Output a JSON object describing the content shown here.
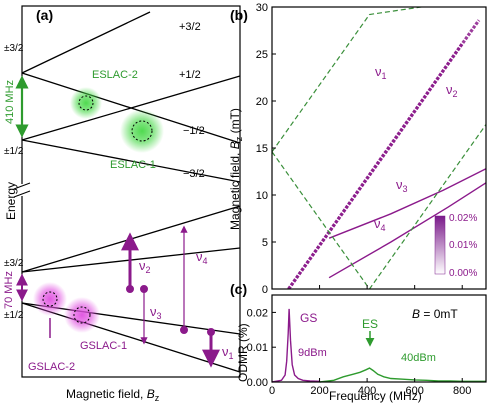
{
  "colors": {
    "green": "#2e9b2e",
    "green_glow": "#46d846",
    "purple": "#8b1a8b",
    "purple_glow": "#e050e0",
    "dashed_green": "#3a8f3a",
    "black": "#000000"
  },
  "panel_a": {
    "label": "(a)",
    "y_label": "Energy",
    "x_label_prefix": "Magnetic field, ",
    "x_label_var": "B",
    "x_label_sub": "z",
    "es_left_top": "±3/2",
    "es_left_bottom": "±1/2",
    "es_right": [
      "+3/2",
      "+1/2",
      "−1/2",
      "−3/2"
    ],
    "es_splitting": "410 MHz",
    "eslac2": "ESLAC-2",
    "eslac1": "ESLAC-1",
    "gs_left_top": "±3/2",
    "gs_left_bottom": "±1/2",
    "gs_splitting": "70 MHz",
    "gslac1": "GSLAC-1",
    "gslac2": "GSLAC-2",
    "transitions": [
      "ν",
      "ν",
      "ν",
      "ν"
    ],
    "transition_subs": [
      "1",
      "2",
      "3",
      "4"
    ]
  },
  "panel_b": {
    "label": "(b)",
    "y_label_prefix": "Magnetic field, ",
    "y_label_var": "B",
    "y_label_sub": "z",
    "y_label_unit": " (mT)",
    "colorbar_ticks": [
      "0.02%",
      "0.01%",
      "0.00%"
    ],
    "line_labels": [
      "ν",
      "ν",
      "ν",
      "ν"
    ],
    "line_subs": [
      "1",
      "2",
      "3",
      "4"
    ]
  },
  "panel_c": {
    "label": "(c)",
    "y_label": "ODMR (%)",
    "x_label": "Frequency (MHz)",
    "condition_var": "B",
    "condition_val": " = 0mT",
    "gs": "GS",
    "gs_power": "9dBm",
    "es": "ES",
    "es_power": "40dBm"
  },
  "chart_data": [
    {
      "type": "diagram",
      "panel": "a",
      "title": "",
      "xlabel": "Magnetic field, Bz",
      "ylabel": "Energy",
      "excited_state_levels": [
        "+3/2",
        "+1/2",
        "−1/2",
        "−3/2"
      ],
      "ground_state_levels": [
        "±3/2",
        "±1/2"
      ],
      "zero_field_splitting_ES_MHz": 410,
      "zero_field_splitting_GS_MHz": 70,
      "anticrossings": [
        "ESLAC-1",
        "ESLAC-2",
        "GSLAC-1",
        "GSLAC-2"
      ],
      "transitions": [
        "ν1",
        "ν2",
        "ν3",
        "ν4"
      ]
    },
    {
      "type": "heatmap",
      "panel": "b",
      "title": "",
      "xlabel": "Frequency (MHz)",
      "ylabel": "Magnetic field, Bz (mT)",
      "xlim": [
        0,
        900
      ],
      "ylim": [
        0,
        30
      ],
      "yticks": [
        0,
        5,
        10,
        15,
        20,
        25,
        30
      ],
      "colorbar": {
        "range_percent": [
          0.0,
          0.02
        ],
        "ticks": [
          0.0,
          0.01,
          0.02
        ]
      },
      "series": [
        {
          "name": "ν1",
          "x": [
            70,
            250,
            450,
            630,
            800
          ],
          "y": [
            0.0,
            6.4,
            13.6,
            20.0,
            26.1
          ]
        },
        {
          "name": "ν2",
          "x": [
            70,
            300,
            500,
            700,
            870
          ],
          "y": [
            0.0,
            8.2,
            15.3,
            22.5,
            28.6
          ]
        },
        {
          "name": "ν3",
          "x": [
            240,
            500,
            720,
            900
          ],
          "y": [
            5.4,
            8.0,
            10.5,
            12.8
          ]
        },
        {
          "name": "ν4",
          "x": [
            240,
            500,
            740,
            900
          ],
          "y": [
            1.2,
            5.0,
            8.7,
            11.3
          ]
        },
        {
          "name": "",
          "style": "dashed",
          "x": [
            0,
            410,
            900
          ],
          "y": [
            14.6,
            0.0,
            17.5
          ]
        },
        {
          "name": "",
          "style": "dashed",
          "x": [
            0,
            410,
            900
          ],
          "y": [
            14.6,
            29.2,
            31.0
          ]
        }
      ]
    },
    {
      "type": "line",
      "panel": "c",
      "title": "",
      "xlabel": "Frequency (MHz)",
      "ylabel": "ODMR (%)",
      "xlim": [
        0,
        900
      ],
      "ylim": [
        0,
        0.025
      ],
      "xticks": [
        0,
        200,
        400,
        600,
        800
      ],
      "yticks": [
        0.0,
        0.01,
        0.02
      ],
      "annotations": [
        "B = 0mT",
        "GS",
        "9dBm",
        "ES",
        "40dBm"
      ],
      "series": [
        {
          "name": "",
          "color": "#8b1a8b",
          "x": [
            0,
            40,
            55,
            62,
            68,
            72,
            78,
            85,
            95,
            110,
            130,
            160,
            200
          ],
          "y": [
            0.0,
            0.0005,
            0.002,
            0.006,
            0.014,
            0.021,
            0.012,
            0.005,
            0.002,
            0.001,
            0.0005,
            0.0003,
            0.0002
          ]
        },
        {
          "name": "",
          "color": "#2e9b2e",
          "x": [
            200,
            260,
            300,
            340,
            370,
            395,
            410,
            425,
            445,
            470,
            500,
            550,
            600,
            650,
            700,
            750,
            800,
            850,
            900
          ],
          "y": [
            0.0,
            0.0005,
            0.0015,
            0.0022,
            0.0028,
            0.0035,
            0.004,
            0.0033,
            0.0022,
            0.0015,
            0.001,
            0.0008,
            0.0006,
            0.0005,
            0.0003,
            0.0003,
            0.0002,
            0.0002,
            0.0002
          ]
        }
      ]
    }
  ]
}
